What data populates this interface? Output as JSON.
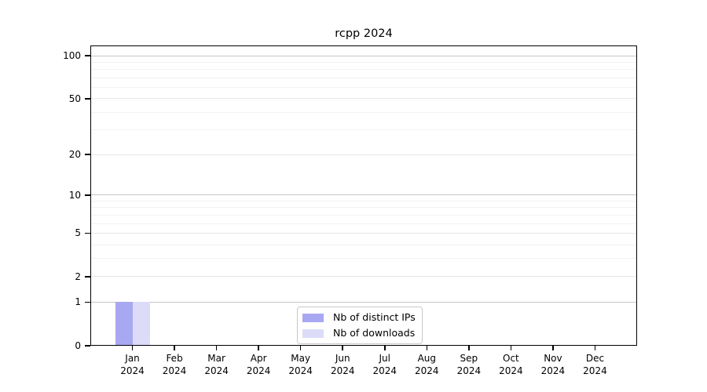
{
  "chart_data": {
    "type": "bar",
    "title": "rcpp 2024",
    "xlabel": "",
    "ylabel": "",
    "categories": [
      "Jan 2024",
      "Feb 2024",
      "Mar 2024",
      "Apr 2024",
      "May 2024",
      "Jun 2024",
      "Jul 2024",
      "Aug 2024",
      "Sep 2024",
      "Oct 2024",
      "Nov 2024",
      "Dec 2024"
    ],
    "series": [
      {
        "name": "Nb of distinct IPs",
        "color": "#a8a8f2",
        "values": [
          1,
          0,
          0,
          0,
          0,
          0,
          0,
          0,
          0,
          0,
          0,
          0
        ]
      },
      {
        "name": "Nb of downloads",
        "color": "#dcdcf8",
        "values": [
          1,
          0,
          0,
          0,
          0,
          0,
          0,
          0,
          0,
          0,
          0,
          0
        ]
      }
    ],
    "yscale": "log1p",
    "ylim": [
      0,
      118
    ],
    "yticks": [
      0,
      1,
      2,
      5,
      10,
      20,
      50,
      100
    ],
    "grid": {
      "on": true,
      "decade_values": [
        1,
        10,
        100
      ],
      "mid_values": [
        2,
        5,
        20,
        50
      ],
      "minor_values": [
        3,
        4,
        6,
        7,
        8,
        9,
        30,
        40,
        60,
        70,
        80,
        90
      ],
      "decade_color": "#c6c6c6",
      "mid_color": "#e7e7e7",
      "minor_color": "#f2f2f2"
    },
    "legend": {
      "position": "bottom-center",
      "entries": [
        "Nb of distinct IPs",
        "Nb of downloads"
      ]
    },
    "axis_color": "#000000",
    "background_color": "#ffffff"
  }
}
